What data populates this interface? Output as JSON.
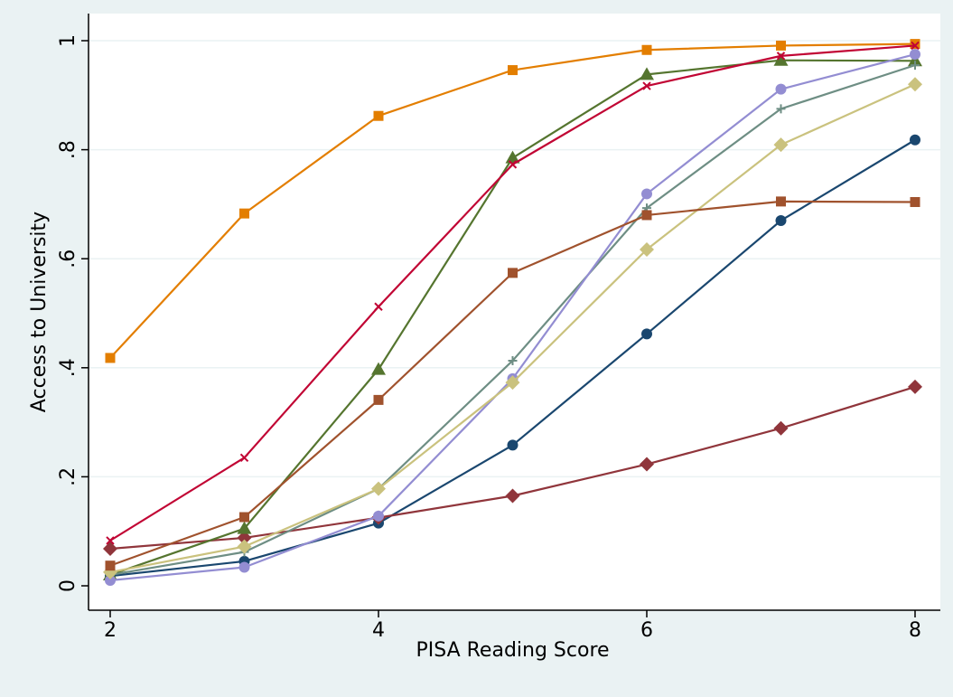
{
  "chart_data": {
    "type": "line",
    "title": "",
    "xlabel": "PISA Reading Score",
    "ylabel": "Access to University",
    "xlim": [
      2,
      8
    ],
    "ylim": [
      0,
      1
    ],
    "xticks": [
      2,
      4,
      6,
      8
    ],
    "xtick_labels": [
      "2",
      "4",
      "6",
      "8"
    ],
    "yticks": [
      0,
      0.2,
      0.4,
      0.6,
      0.8,
      1
    ],
    "ytick_labels": [
      "0",
      ".2",
      ".4",
      ".6",
      ".8",
      "1"
    ],
    "grid": true,
    "legend": "none",
    "x": [
      2,
      3,
      4,
      5,
      6,
      7,
      8
    ],
    "series": [
      {
        "color": "#1a476f",
        "marker": "circle",
        "values": [
          0.018,
          0.045,
          0.115,
          0.258,
          0.462,
          0.67,
          0.818
        ]
      },
      {
        "color": "#90353b",
        "marker": "diamond",
        "values": [
          0.068,
          0.088,
          0.125,
          0.165,
          0.223,
          0.289,
          0.365
        ]
      },
      {
        "color": "#55752f",
        "marker": "triangle",
        "values": [
          0.02,
          0.105,
          0.397,
          0.785,
          0.938,
          0.964,
          0.963
        ]
      },
      {
        "color": "#e37e00",
        "marker": "square",
        "values": [
          0.418,
          0.683,
          0.862,
          0.946,
          0.983,
          0.991,
          0.994
        ]
      },
      {
        "color": "#6e8e84",
        "marker": "plus",
        "values": [
          0.02,
          0.062,
          0.178,
          0.413,
          0.693,
          0.875,
          0.955
        ]
      },
      {
        "color": "#c10534",
        "marker": "x",
        "values": [
          0.083,
          0.235,
          0.512,
          0.773,
          0.917,
          0.972,
          0.991
        ]
      },
      {
        "color": "#938dd2",
        "marker": "circle",
        "values": [
          0.01,
          0.034,
          0.128,
          0.38,
          0.719,
          0.911,
          0.975
        ]
      },
      {
        "color": "#cac27e",
        "marker": "diamond",
        "values": [
          0.025,
          0.072,
          0.178,
          0.373,
          0.617,
          0.809,
          0.92
        ]
      },
      {
        "color": "#a0522d",
        "marker": "square",
        "values": [
          0.037,
          0.126,
          0.341,
          0.574,
          0.68,
          0.705,
          0.704
        ]
      }
    ]
  }
}
